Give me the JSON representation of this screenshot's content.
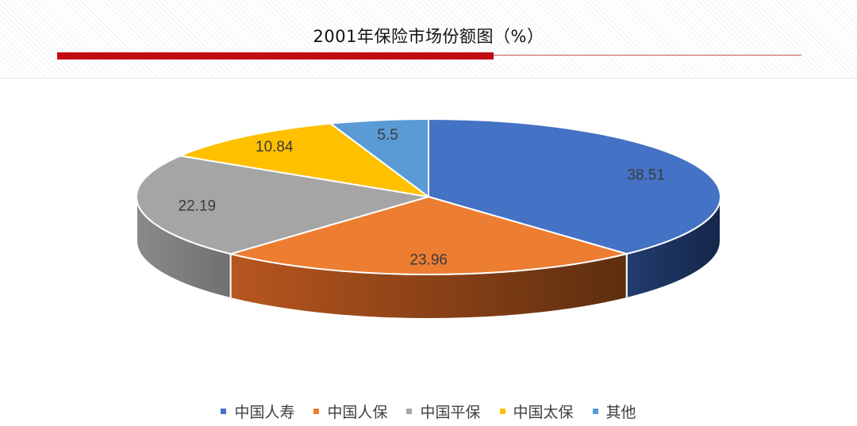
{
  "title": "2001年保险市场份额图（%）",
  "chart_data": {
    "type": "pie",
    "three_d": true,
    "labels": [
      "中国人寿",
      "中国人保",
      "中国平保",
      "中国太保",
      "其他"
    ],
    "values": [
      38.51,
      23.96,
      22.19,
      10.84,
      5.5
    ],
    "value_labels": [
      "38.51",
      "23.96",
      "22.19",
      "10.84",
      "5.5"
    ],
    "colors": [
      "#4472c4",
      "#ed7d31",
      "#a5a5a5",
      "#ffc000",
      "#5b9bd5"
    ],
    "legend_position": "bottom"
  }
}
